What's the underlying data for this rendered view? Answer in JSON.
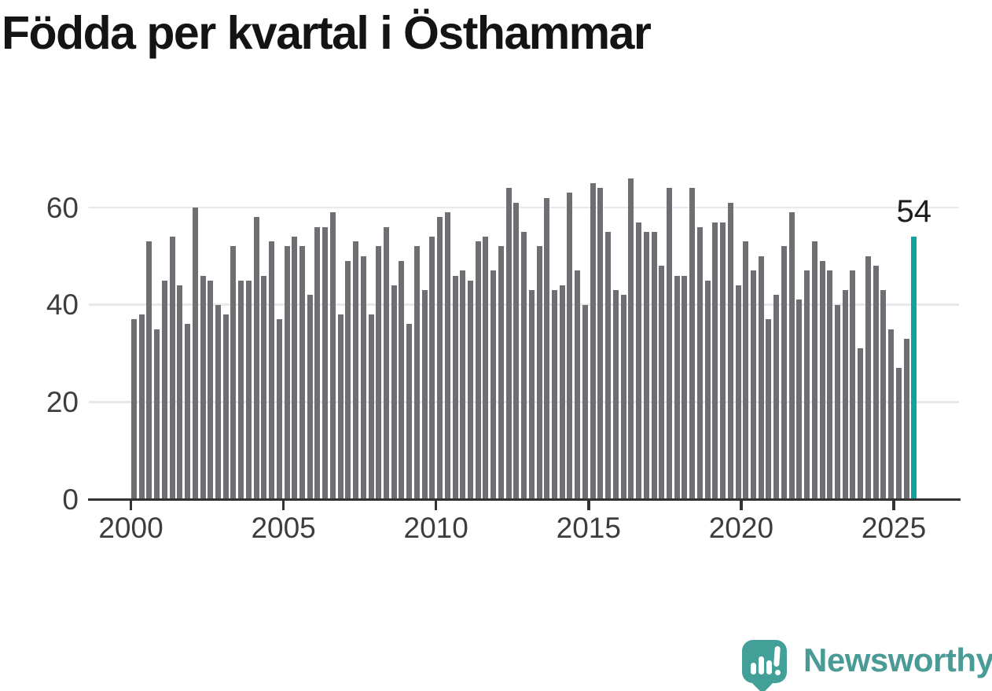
{
  "title": "Födda per kvartal i Östhammar",
  "annotation": {
    "value_label": "54"
  },
  "branding": {
    "name": "Newsworthy",
    "logo_icon": "speech-bubble-bar-chart-icon"
  },
  "colors": {
    "bar": "#6e6e73",
    "highlight": "#0ea5a0",
    "grid": "#e8e8e8",
    "axis": "#333333",
    "axis_text": "#3d3d3d",
    "title_text": "#141414",
    "annotation_text": "#1c1c1c",
    "brand_bubble": "#42a099",
    "brand_text": "#4a9a95",
    "background": "#ffffff"
  },
  "chart_data": {
    "type": "bar",
    "title": "Födda per kvartal i Östhammar",
    "xlabel": "",
    "ylabel": "",
    "grid": "horizontal",
    "legend_position": "none",
    "ylim": [
      0,
      70
    ],
    "y_ticks": [
      0,
      20,
      40,
      60
    ],
    "x_tick_labels": [
      "2000",
      "2005",
      "2010",
      "2015",
      "2020",
      "2025"
    ],
    "highlight_index": 102,
    "highlight_value_label": "54",
    "categories": [
      "2000 Q1",
      "2000 Q2",
      "2000 Q3",
      "2000 Q4",
      "2001 Q1",
      "2001 Q2",
      "2001 Q3",
      "2001 Q4",
      "2002 Q1",
      "2002 Q2",
      "2002 Q3",
      "2002 Q4",
      "2003 Q1",
      "2003 Q2",
      "2003 Q3",
      "2003 Q4",
      "2004 Q1",
      "2004 Q2",
      "2004 Q3",
      "2004 Q4",
      "2005 Q1",
      "2005 Q2",
      "2005 Q3",
      "2005 Q4",
      "2006 Q1",
      "2006 Q2",
      "2006 Q3",
      "2006 Q4",
      "2007 Q1",
      "2007 Q2",
      "2007 Q3",
      "2007 Q4",
      "2008 Q1",
      "2008 Q2",
      "2008 Q3",
      "2008 Q4",
      "2009 Q1",
      "2009 Q2",
      "2009 Q3",
      "2009 Q4",
      "2010 Q1",
      "2010 Q2",
      "2010 Q3",
      "2010 Q4",
      "2011 Q1",
      "2011 Q2",
      "2011 Q3",
      "2011 Q4",
      "2012 Q1",
      "2012 Q2",
      "2012 Q3",
      "2012 Q4",
      "2013 Q1",
      "2013 Q2",
      "2013 Q3",
      "2013 Q4",
      "2014 Q1",
      "2014 Q2",
      "2014 Q3",
      "2014 Q4",
      "2015 Q1",
      "2015 Q2",
      "2015 Q3",
      "2015 Q4",
      "2016 Q1",
      "2016 Q2",
      "2016 Q3",
      "2016 Q4",
      "2017 Q1",
      "2017 Q2",
      "2017 Q3",
      "2017 Q4",
      "2018 Q1",
      "2018 Q2",
      "2018 Q3",
      "2018 Q4",
      "2019 Q1",
      "2019 Q2",
      "2019 Q3",
      "2019 Q4",
      "2020 Q1",
      "2020 Q2",
      "2020 Q3",
      "2020 Q4",
      "2021 Q1",
      "2021 Q2",
      "2021 Q3",
      "2021 Q4",
      "2022 Q1",
      "2022 Q2",
      "2022 Q3",
      "2022 Q4",
      "2023 Q1",
      "2023 Q2",
      "2023 Q3",
      "2023 Q4",
      "2024 Q1",
      "2024 Q2",
      "2024 Q3",
      "2024 Q4",
      "2025 Q1",
      "2025 Q2",
      "2025 Q3"
    ],
    "values": [
      37,
      38,
      53,
      35,
      45,
      54,
      44,
      36,
      60,
      46,
      45,
      40,
      38,
      52,
      45,
      45,
      58,
      46,
      53,
      37,
      52,
      54,
      52,
      42,
      56,
      56,
      59,
      38,
      49,
      53,
      50,
      38,
      52,
      56,
      44,
      49,
      36,
      52,
      43,
      54,
      58,
      59,
      46,
      47,
      45,
      53,
      54,
      47,
      52,
      64,
      61,
      55,
      43,
      52,
      62,
      43,
      44,
      63,
      47,
      40,
      65,
      64,
      55,
      43,
      42,
      66,
      57,
      55,
      55,
      48,
      64,
      46,
      46,
      64,
      56,
      45,
      57,
      57,
      61,
      44,
      53,
      47,
      50,
      37,
      42,
      52,
      59,
      41,
      47,
      53,
      49,
      47,
      40,
      43,
      47,
      31,
      50,
      48,
      43,
      35,
      27,
      33,
      54
    ]
  }
}
